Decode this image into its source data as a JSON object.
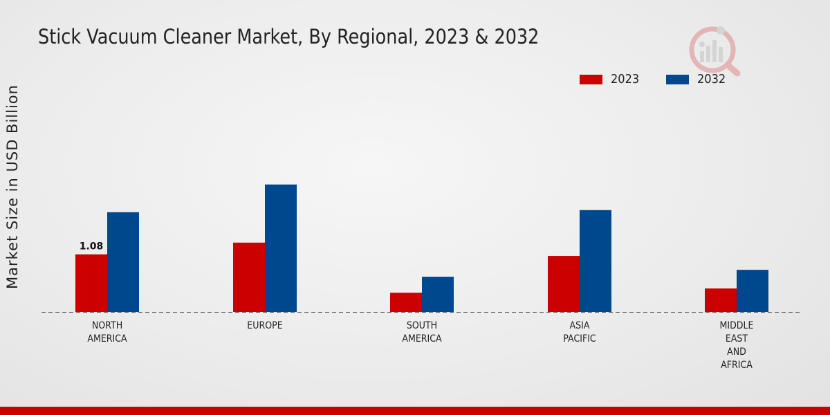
{
  "chart_data": {
    "type": "bar",
    "title": "Stick Vacuum Cleaner Market, By Regional, 2023 & 2032",
    "xlabel": "",
    "ylabel": "Market Size in USD Billion",
    "categories": [
      "NORTH\nAMERICA",
      "EUROPE",
      "SOUTH\nAMERICA",
      "ASIA\nPACIFIC",
      "MIDDLE\nEAST\nAND\nAFRICA"
    ],
    "series": [
      {
        "name": "2023",
        "color": "#cc0000",
        "values": [
          1.08,
          1.3,
          0.36,
          1.05,
          0.44
        ]
      },
      {
        "name": "2032",
        "color": "#00488d",
        "values": [
          1.87,
          2.39,
          0.66,
          1.91,
          0.79
        ]
      }
    ],
    "data_labels": [
      {
        "series": 0,
        "index": 0,
        "text": "1.08"
      }
    ],
    "ylim": [
      0,
      5.5
    ],
    "grid": false,
    "legend": "top-right"
  }
}
